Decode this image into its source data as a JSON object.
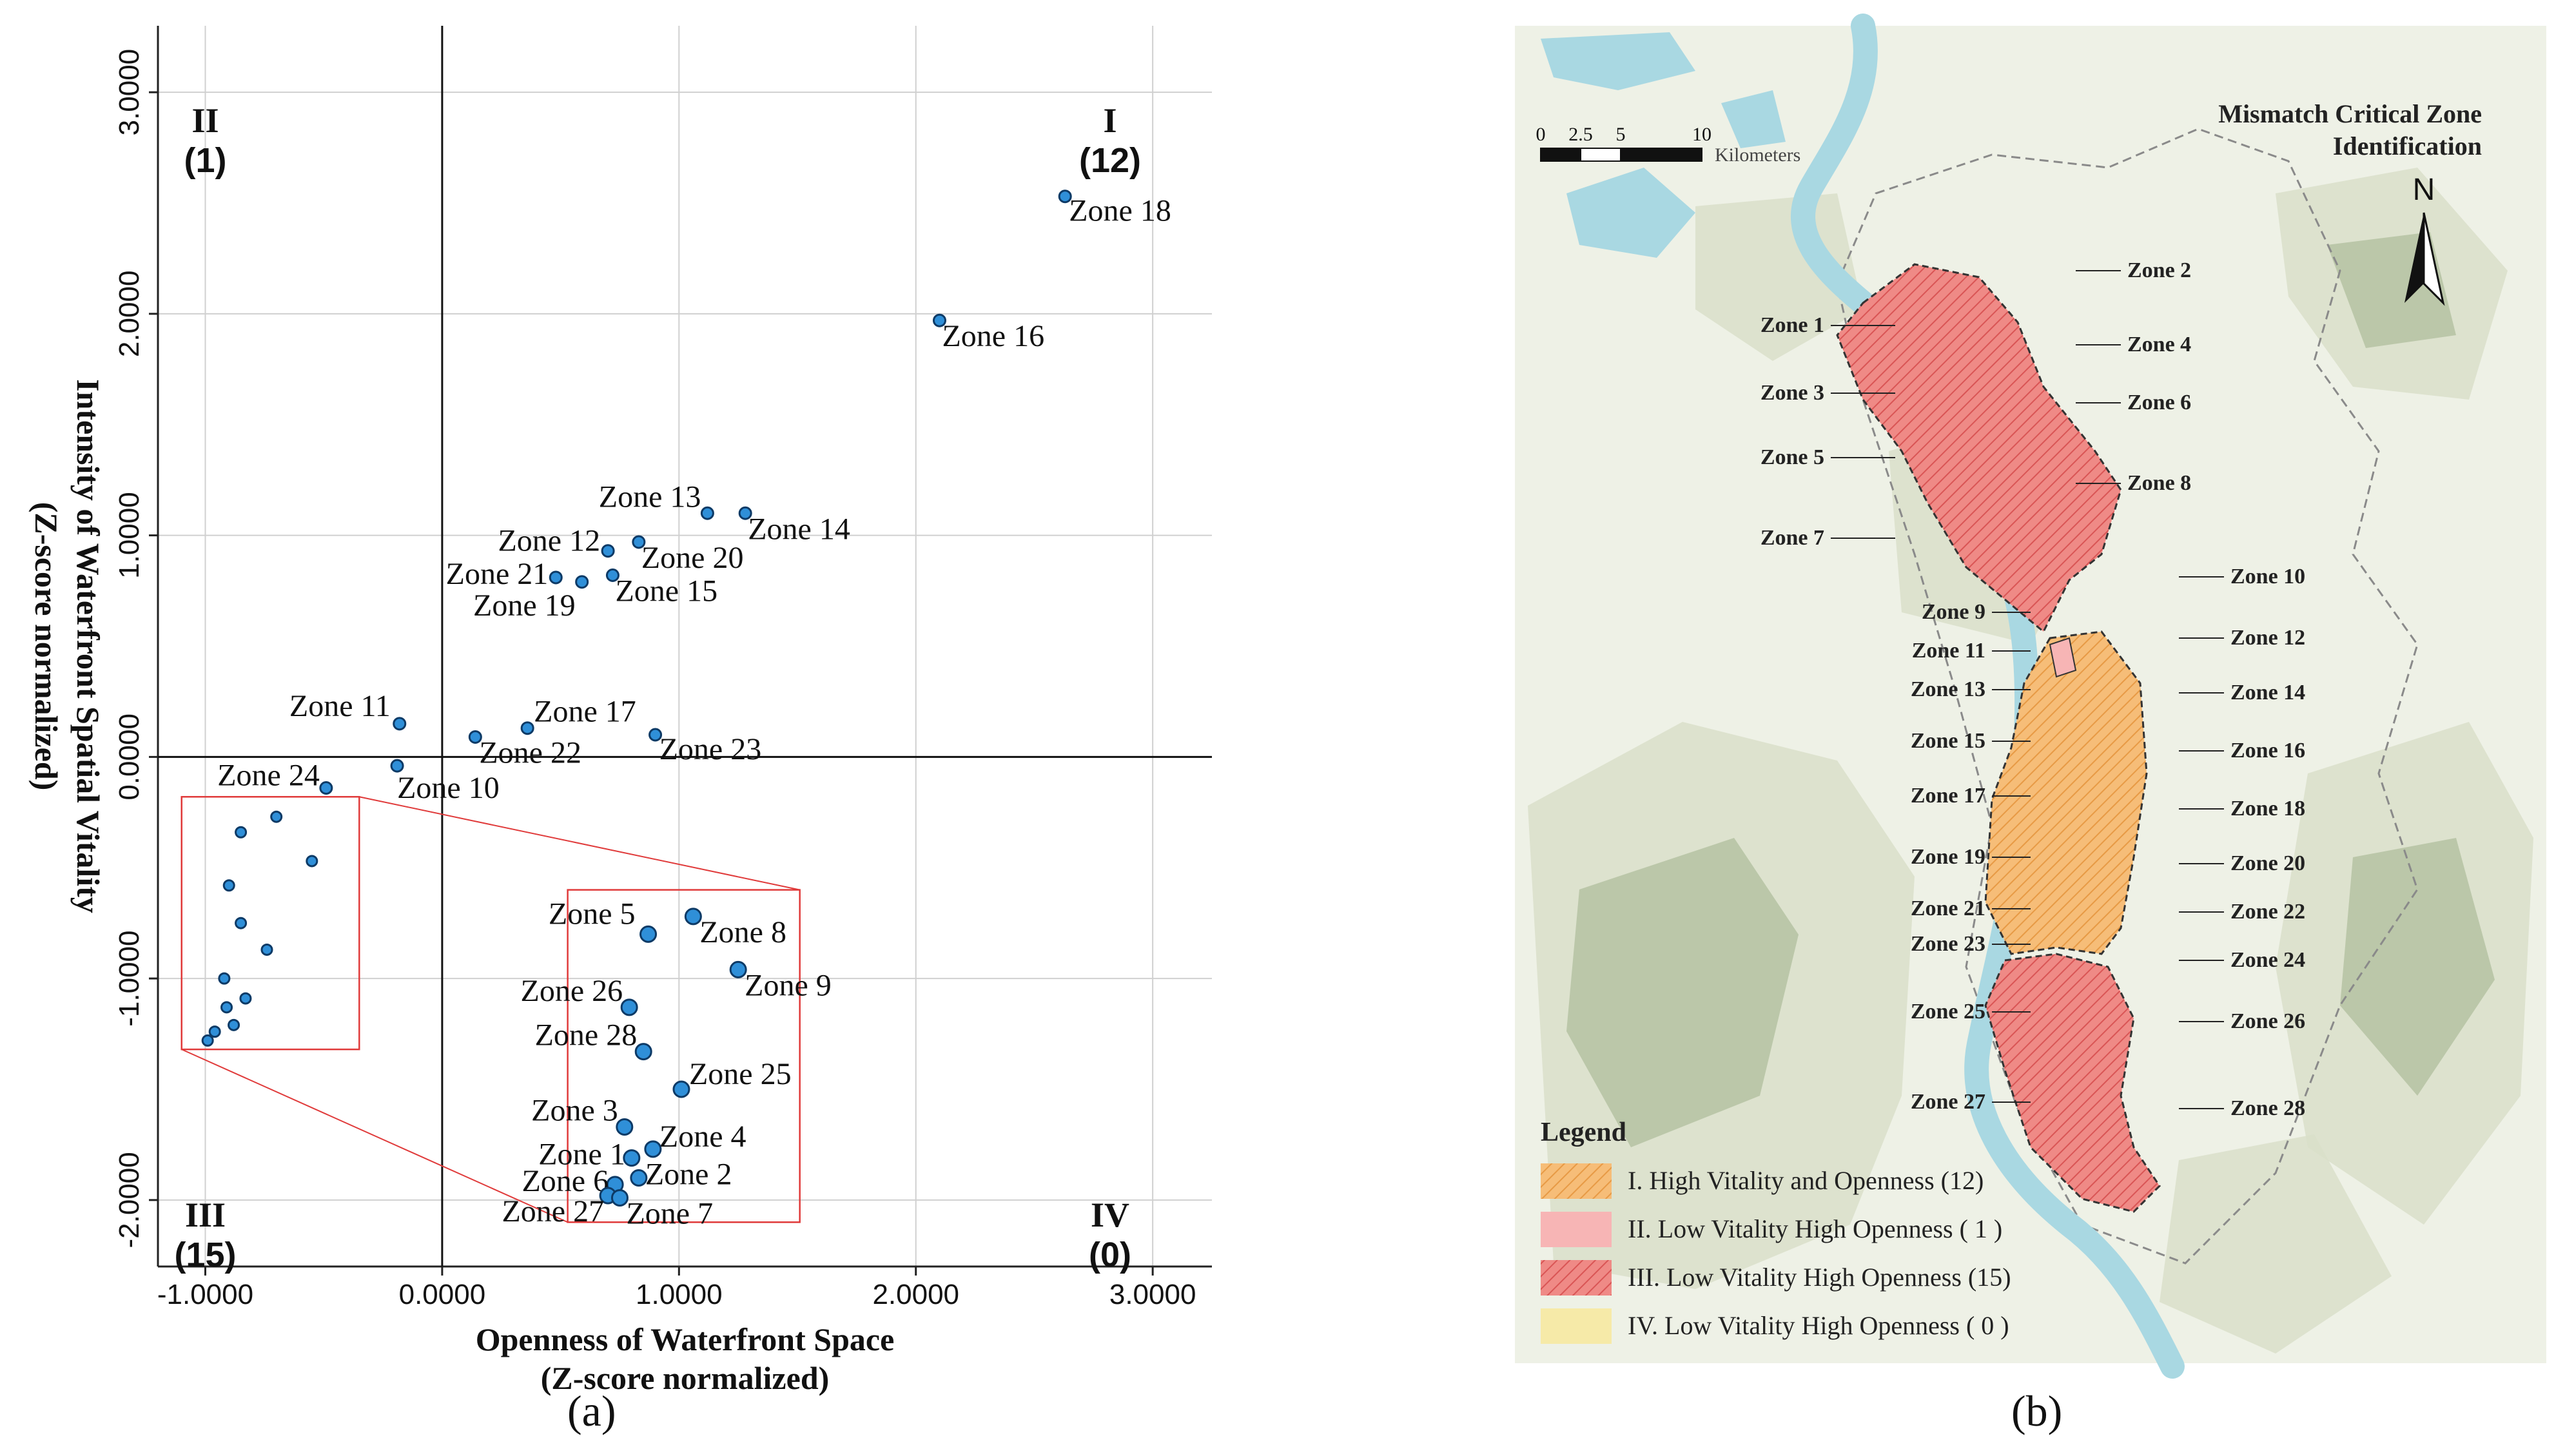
{
  "chart_data": [
    {
      "type": "scatter",
      "xlabel": "Openness of Waterfront Space",
      "xlabel_sub": "(Z-score normalized)",
      "ylabel": "Intensity of Waterfront Spatial Vitality",
      "ylabel_sub": "(Z-score normalized)",
      "xlim": [
        -1.2,
        3.25
      ],
      "ylim": [
        -2.3,
        3.3
      ],
      "xticks": [
        -1.0,
        0.0,
        1.0,
        2.0,
        3.0
      ],
      "xtick_labels": [
        "-1.0000",
        "0.0000",
        "1.0000",
        "2.0000",
        "3.0000"
      ],
      "yticks": [
        -2.0,
        -1.0,
        0.0,
        1.0,
        2.0,
        3.0
      ],
      "ytick_labels": [
        "-2.0000",
        "-1.0000",
        "0.0000",
        "1.0000",
        "2.0000",
        "3.0000"
      ],
      "grid": true,
      "quadrants": [
        {
          "roman": "II",
          "count": "(1)",
          "x": -1.0,
          "y": 2.82
        },
        {
          "roman": "I",
          "count": "(12)",
          "x": 2.82,
          "y": 2.82
        },
        {
          "roman": "III",
          "count": "(15)",
          "x": -1.0,
          "y": -2.12
        },
        {
          "roman": "IV",
          "count": "(0)",
          "x": 2.82,
          "y": -2.12
        }
      ],
      "points": [
        {
          "label": "Zone 18",
          "x": 2.63,
          "y": 2.53
        },
        {
          "label": "Zone 16",
          "x": 2.1,
          "y": 1.97
        },
        {
          "label": "Zone 13",
          "x": 1.12,
          "y": 1.1
        },
        {
          "label": "Zone 14",
          "x": 1.28,
          "y": 1.1
        },
        {
          "label": "Zone 12",
          "x": 0.7,
          "y": 0.93
        },
        {
          "label": "Zone 20",
          "x": 0.83,
          "y": 0.97
        },
        {
          "label": "Zone 21",
          "x": 0.48,
          "y": 0.81
        },
        {
          "label": "Zone 19",
          "x": 0.59,
          "y": 0.79
        },
        {
          "label": "Zone 15",
          "x": 0.72,
          "y": 0.82
        },
        {
          "label": "Zone 11",
          "x": -0.18,
          "y": 0.15
        },
        {
          "label": "Zone 17",
          "x": 0.36,
          "y": 0.13
        },
        {
          "label": "Zone 22",
          "x": 0.14,
          "y": 0.09
        },
        {
          "label": "Zone 23",
          "x": 0.9,
          "y": 0.1
        },
        {
          "label": "Zone 10",
          "x": -0.19,
          "y": -0.04
        },
        {
          "label": "Zone 24",
          "x": -0.49,
          "y": -0.14
        }
      ],
      "inset_source_points": [
        {
          "x": -0.85,
          "y": -0.34
        },
        {
          "x": -0.7,
          "y": -0.27
        },
        {
          "x": -0.55,
          "y": -0.47
        },
        {
          "x": -0.9,
          "y": -0.58
        },
        {
          "x": -0.85,
          "y": -0.75
        },
        {
          "x": -0.74,
          "y": -0.87
        },
        {
          "x": -0.92,
          "y": -1.0
        },
        {
          "x": -0.83,
          "y": -1.09
        },
        {
          "x": -0.91,
          "y": -1.13
        },
        {
          "x": -0.88,
          "y": -1.21
        },
        {
          "x": -0.96,
          "y": -1.24
        },
        {
          "x": -0.99,
          "y": -1.28
        }
      ],
      "inset_points": [
        {
          "label": "Zone 5",
          "x": 0.87,
          "y": -0.8
        },
        {
          "label": "Zone 8",
          "x": 1.06,
          "y": -0.72
        },
        {
          "label": "Zone 9",
          "x": 1.25,
          "y": -0.96
        },
        {
          "label": "Zone 26",
          "x": 0.79,
          "y": -1.13
        },
        {
          "label": "Zone 28",
          "x": 0.85,
          "y": -1.33
        },
        {
          "label": "Zone 25",
          "x": 1.01,
          "y": -1.5
        },
        {
          "label": "Zone 3",
          "x": 0.77,
          "y": -1.67
        },
        {
          "label": "Zone 4",
          "x": 0.89,
          "y": -1.77
        },
        {
          "label": "Zone 1",
          "x": 0.8,
          "y": -1.81
        },
        {
          "label": "Zone 2",
          "x": 0.83,
          "y": -1.9
        },
        {
          "label": "Zone 6",
          "x": 0.73,
          "y": -1.93
        },
        {
          "label": "Zone 27",
          "x": 0.7,
          "y": -1.98
        },
        {
          "label": "Zone 7",
          "x": 0.75,
          "y": -1.99
        }
      ],
      "caption": "(a)"
    },
    {
      "type": "map",
      "title_line1": "Mismatch Critical Zone",
      "title_line2": "Identification",
      "north": "N",
      "scale_ticks": [
        "0",
        "2.5",
        "5",
        "10"
      ],
      "scale_unit": "Kilometers",
      "legend_title": "Legend",
      "legend": [
        {
          "label": "I.   High Vitality and Openness  (12)",
          "color": "#f5b971",
          "hatch": true
        },
        {
          "label": "II.  Low Vitality High Openness ( 1 )",
          "color": "#f7b5b5",
          "hatch": false
        },
        {
          "label": "III. Low Vitality High Openness (15)",
          "color": "#ec7f7f",
          "hatch": true
        },
        {
          "label": "IV. Low Vitality High Openness ( 0 )",
          "color": "#f6eaa8",
          "hatch": false
        }
      ],
      "zone_labels_left": [
        "Zone 1",
        "Zone 3",
        "Zone 5",
        "Zone 7",
        "Zone 9",
        "Zone 11",
        "Zone 13",
        "Zone 15",
        "Zone 17",
        "Zone 19",
        "Zone 21",
        "Zone 23",
        "Zone 25",
        "Zone 27"
      ],
      "zone_labels_right": [
        "Zone 2",
        "Zone 4",
        "Zone 6",
        "Zone 8",
        "Zone 10",
        "Zone 12",
        "Zone 14",
        "Zone 16",
        "Zone 18",
        "Zone 20",
        "Zone 22",
        "Zone 24",
        "Zone 26",
        "Zone 28"
      ],
      "caption": "(b)"
    }
  ],
  "colors": {
    "point_fill": "#2f8fd8",
    "point_stroke": "#0d3a66",
    "inset_frame": "#e03a3a",
    "river": "#a9d8e2",
    "terrain": "#d9dfc9",
    "terrain_dark": "#9fb08a"
  }
}
